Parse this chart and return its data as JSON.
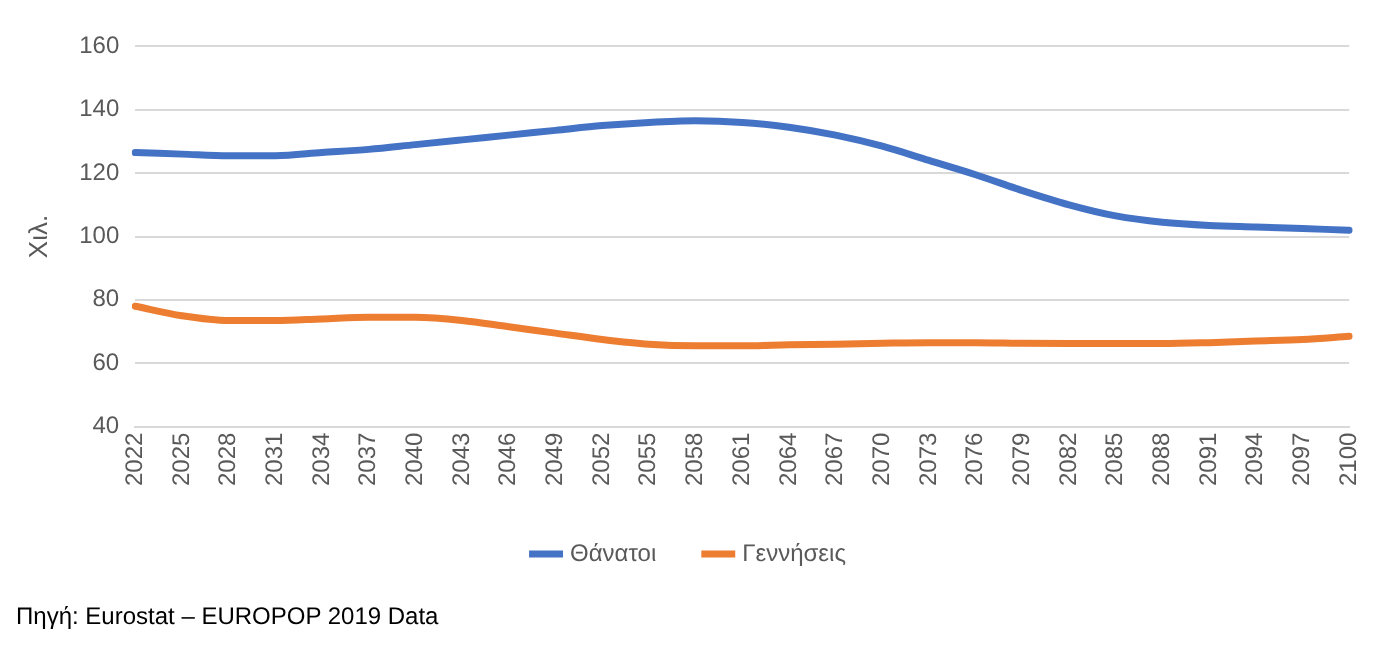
{
  "chart_data": {
    "type": "line",
    "ylabel": "Χιλ.",
    "categories": [
      "2022",
      "2025",
      "2028",
      "2031",
      "2034",
      "2037",
      "2040",
      "2043",
      "2046",
      "2049",
      "2052",
      "2055",
      "2058",
      "2061",
      "2064",
      "2067",
      "2070",
      "2073",
      "2076",
      "2079",
      "2082",
      "2085",
      "2088",
      "2091",
      "2094",
      "2097",
      "2100"
    ],
    "series": [
      {
        "name": "Θάνατοι",
        "color": "#4472c4",
        "values": [
          126.5,
          126,
          125.5,
          125.5,
          126.5,
          127.5,
          129,
          130.5,
          132,
          133.5,
          135,
          136,
          136.5,
          136,
          134.5,
          132,
          128.5,
          124,
          119.5,
          114.5,
          110,
          106.5,
          104.5,
          103.5,
          103,
          102.5,
          102
        ]
      },
      {
        "name": "Γεννήσεις",
        "color": "#ed7d31",
        "values": [
          78,
          75,
          73.5,
          73.5,
          74,
          74.5,
          74.5,
          73.5,
          71.5,
          69.5,
          67.5,
          66,
          65.5,
          65.5,
          65.8,
          66,
          66.3,
          66.5,
          66.5,
          66.3,
          66.2,
          66.2,
          66.2,
          66.5,
          67,
          67.5,
          68.5
        ]
      }
    ],
    "ylim": [
      40,
      160
    ],
    "yticks": [
      40,
      60,
      80,
      100,
      120,
      140,
      160
    ],
    "grid": "y",
    "legend": "bottom",
    "marker": "none",
    "line_style": "solid",
    "annotations": [
      "Πηγή: Eurostat – EUROPOP 2019 Data"
    ]
  }
}
